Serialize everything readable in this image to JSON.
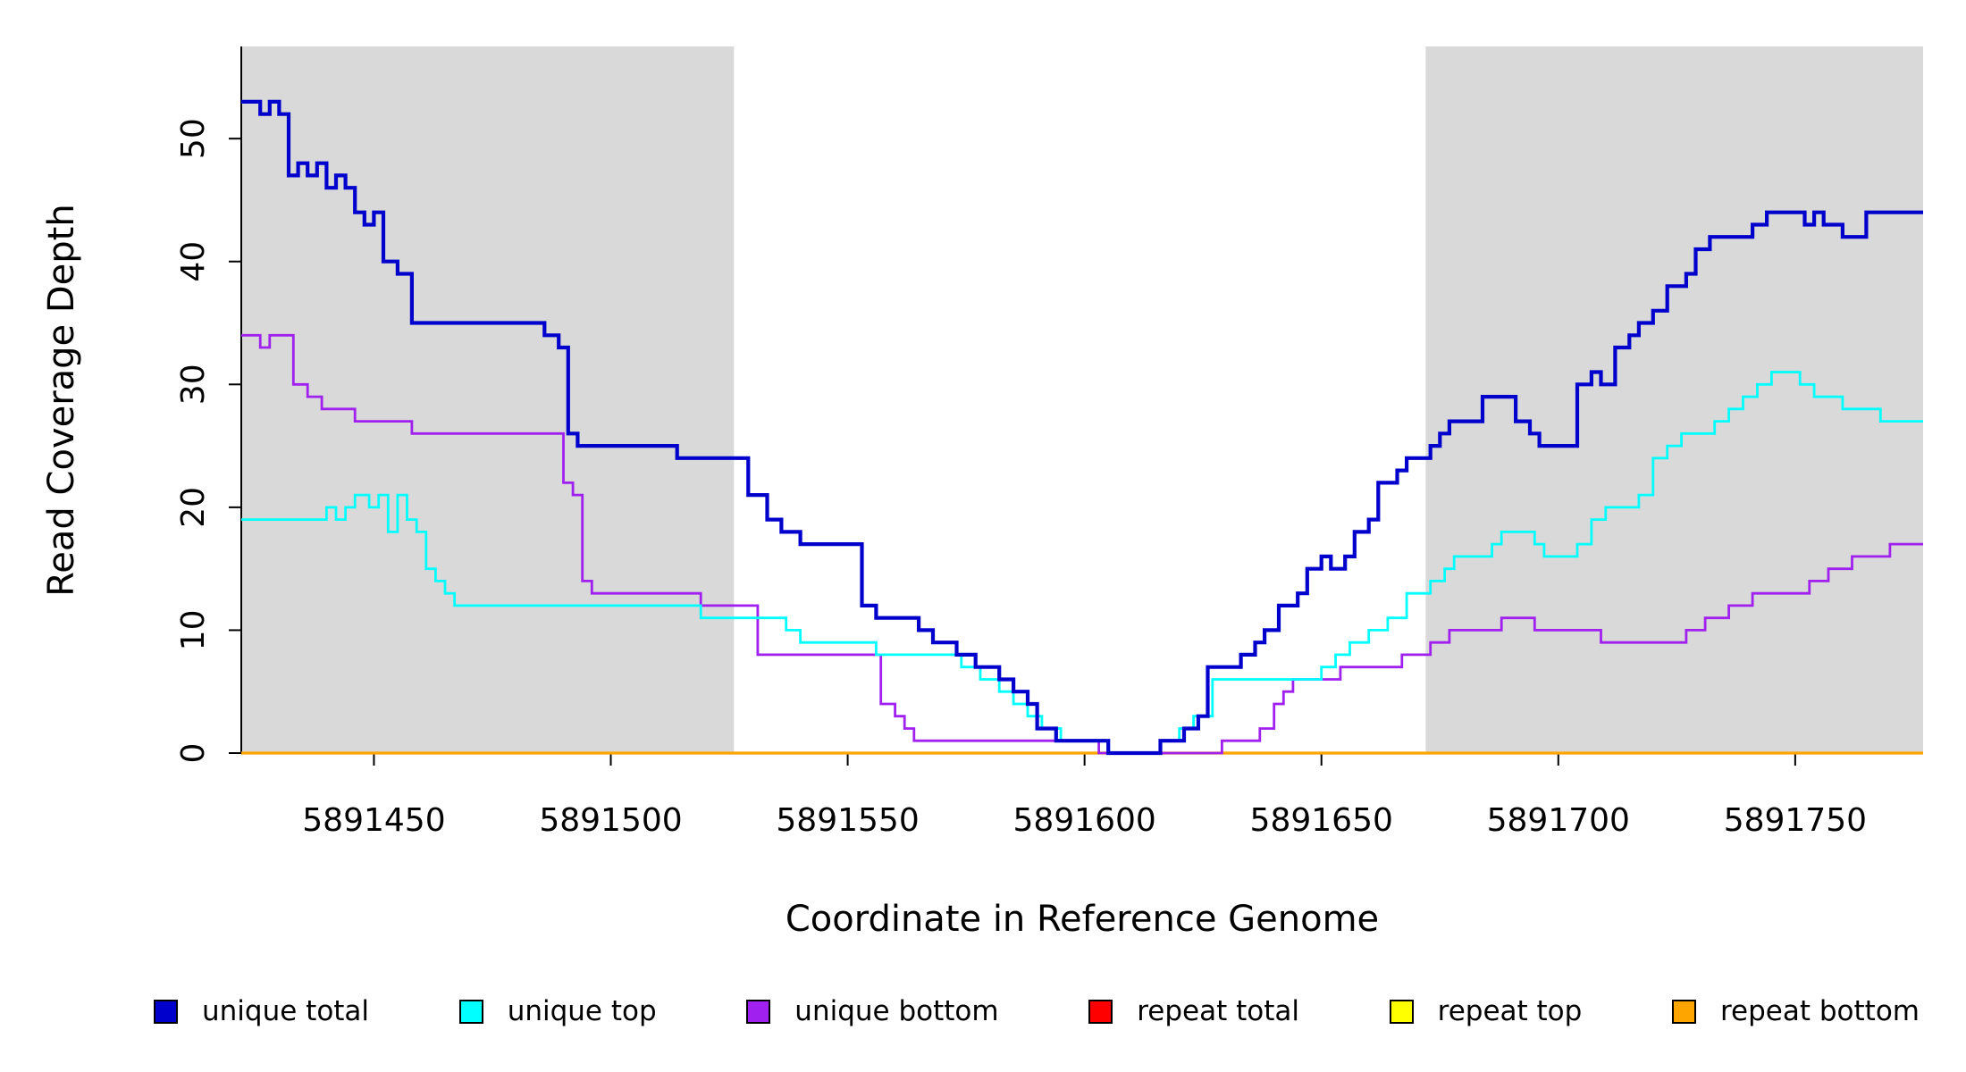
{
  "figure": {
    "background": "#ffffff"
  },
  "chart_data": {
    "type": "line",
    "line_style": "step",
    "title": "",
    "xlabel": "Coordinate in Reference Genome",
    "ylabel": "Read Coverage Depth",
    "xlim": [
      5891422,
      5891777
    ],
    "ylim": [
      0,
      57.5
    ],
    "x_ticks": [
      5891450,
      5891500,
      5891550,
      5891600,
      5891650,
      5891700,
      5891750
    ],
    "y_ticks": [
      0,
      10,
      20,
      30,
      40,
      50
    ],
    "grid": false,
    "legend_position": "bottom",
    "shaded_regions": [
      {
        "x0": 5891422,
        "x1": 5891526,
        "color": "#d9d9d9"
      },
      {
        "x0": 5891672,
        "x1": 5891777,
        "color": "#d9d9d9"
      }
    ],
    "series": [
      {
        "name": "repeat total",
        "color": "#ff0000",
        "width": 2.8,
        "points": [
          [
            5891422,
            0
          ],
          [
            5891777,
            0
          ]
        ]
      },
      {
        "name": "repeat top",
        "color": "#ffff00",
        "width": 2.8,
        "points": [
          [
            5891422,
            0
          ],
          [
            5891777,
            0
          ]
        ]
      },
      {
        "name": "repeat bottom",
        "color": "#ffa500",
        "width": 3.2,
        "points": [
          [
            5891422,
            0
          ],
          [
            5891777,
            0
          ]
        ]
      },
      {
        "name": "unique bottom",
        "color": "#a020f0",
        "width": 2.8,
        "points": [
          [
            5891422,
            34
          ],
          [
            5891426,
            33
          ],
          [
            5891428,
            34
          ],
          [
            5891433,
            30
          ],
          [
            5891436,
            29
          ],
          [
            5891439,
            28
          ],
          [
            5891446,
            27
          ],
          [
            5891458,
            26
          ],
          [
            5891490,
            22
          ],
          [
            5891492,
            21
          ],
          [
            5891494,
            14
          ],
          [
            5891496,
            13
          ],
          [
            5891519,
            12
          ],
          [
            5891531,
            8
          ],
          [
            5891557,
            4
          ],
          [
            5891560,
            3
          ],
          [
            5891562,
            2
          ],
          [
            5891564,
            1
          ],
          [
            5891603,
            0
          ],
          [
            5891629,
            1
          ],
          [
            5891637,
            2
          ],
          [
            5891640,
            4
          ],
          [
            5891642,
            5
          ],
          [
            5891644,
            6
          ],
          [
            5891654,
            7
          ],
          [
            5891667,
            8
          ],
          [
            5891673,
            9
          ],
          [
            5891677,
            10
          ],
          [
            5891688,
            11
          ],
          [
            5891695,
            10
          ],
          [
            5891709,
            9
          ],
          [
            5891727,
            10
          ],
          [
            5891731,
            11
          ],
          [
            5891736,
            12
          ],
          [
            5891741,
            13
          ],
          [
            5891753,
            14
          ],
          [
            5891757,
            15
          ],
          [
            5891762,
            16
          ],
          [
            5891770,
            17
          ],
          [
            5891777,
            17
          ]
        ]
      },
      {
        "name": "unique top",
        "color": "#00ffff",
        "width": 2.8,
        "points": [
          [
            5891422,
            19
          ],
          [
            5891440,
            20
          ],
          [
            5891442,
            19
          ],
          [
            5891444,
            20
          ],
          [
            5891446,
            21
          ],
          [
            5891449,
            20
          ],
          [
            5891451,
            21
          ],
          [
            5891453,
            18
          ],
          [
            5891455,
            21
          ],
          [
            5891457,
            19
          ],
          [
            5891459,
            18
          ],
          [
            5891461,
            15
          ],
          [
            5891463,
            14
          ],
          [
            5891465,
            13
          ],
          [
            5891467,
            12
          ],
          [
            5891519,
            11
          ],
          [
            5891537,
            10
          ],
          [
            5891540,
            9
          ],
          [
            5891556,
            8
          ],
          [
            5891574,
            7
          ],
          [
            5891578,
            6
          ],
          [
            5891582,
            5
          ],
          [
            5891585,
            4
          ],
          [
            5891588,
            3
          ],
          [
            5891591,
            2
          ],
          [
            5891595,
            1
          ],
          [
            5891605,
            0
          ],
          [
            5891616,
            1
          ],
          [
            5891620,
            2
          ],
          [
            5891623,
            3
          ],
          [
            5891627,
            6
          ],
          [
            5891650,
            7
          ],
          [
            5891653,
            8
          ],
          [
            5891656,
            9
          ],
          [
            5891660,
            10
          ],
          [
            5891664,
            11
          ],
          [
            5891668,
            13
          ],
          [
            5891673,
            14
          ],
          [
            5891676,
            15
          ],
          [
            5891678,
            16
          ],
          [
            5891686,
            17
          ],
          [
            5891688,
            18
          ],
          [
            5891695,
            17
          ],
          [
            5891697,
            16
          ],
          [
            5891704,
            17
          ],
          [
            5891707,
            19
          ],
          [
            5891710,
            20
          ],
          [
            5891717,
            21
          ],
          [
            5891720,
            24
          ],
          [
            5891723,
            25
          ],
          [
            5891726,
            26
          ],
          [
            5891733,
            27
          ],
          [
            5891736,
            28
          ],
          [
            5891739,
            29
          ],
          [
            5891742,
            30
          ],
          [
            5891745,
            31
          ],
          [
            5891751,
            30
          ],
          [
            5891754,
            29
          ],
          [
            5891760,
            28
          ],
          [
            5891768,
            27
          ],
          [
            5891777,
            27
          ]
        ]
      },
      {
        "name": "unique total",
        "color": "#0000cd",
        "width": 4.2,
        "points": [
          [
            5891422,
            53
          ],
          [
            5891426,
            52
          ],
          [
            5891428,
            53
          ],
          [
            5891430,
            52
          ],
          [
            5891432,
            47
          ],
          [
            5891434,
            48
          ],
          [
            5891436,
            47
          ],
          [
            5891438,
            48
          ],
          [
            5891440,
            46
          ],
          [
            5891442,
            47
          ],
          [
            5891444,
            46
          ],
          [
            5891446,
            44
          ],
          [
            5891448,
            43
          ],
          [
            5891450,
            44
          ],
          [
            5891452,
            40
          ],
          [
            5891455,
            39
          ],
          [
            5891458,
            35
          ],
          [
            5891486,
            34
          ],
          [
            5891489,
            33
          ],
          [
            5891491,
            26
          ],
          [
            5891493,
            25
          ],
          [
            5891514,
            24
          ],
          [
            5891529,
            21
          ],
          [
            5891533,
            19
          ],
          [
            5891536,
            18
          ],
          [
            5891540,
            17
          ],
          [
            5891553,
            12
          ],
          [
            5891556,
            11
          ],
          [
            5891565,
            10
          ],
          [
            5891568,
            9
          ],
          [
            5891573,
            8
          ],
          [
            5891577,
            7
          ],
          [
            5891582,
            6
          ],
          [
            5891585,
            5
          ],
          [
            5891588,
            4
          ],
          [
            5891590,
            2
          ],
          [
            5891594,
            1
          ],
          [
            5891605,
            0
          ],
          [
            5891616,
            1
          ],
          [
            5891621,
            2
          ],
          [
            5891624,
            3
          ],
          [
            5891626,
            7
          ],
          [
            5891633,
            8
          ],
          [
            5891636,
            9
          ],
          [
            5891638,
            10
          ],
          [
            5891641,
            12
          ],
          [
            5891645,
            13
          ],
          [
            5891647,
            15
          ],
          [
            5891650,
            16
          ],
          [
            5891652,
            15
          ],
          [
            5891655,
            16
          ],
          [
            5891657,
            18
          ],
          [
            5891660,
            19
          ],
          [
            5891662,
            22
          ],
          [
            5891666,
            23
          ],
          [
            5891668,
            24
          ],
          [
            5891673,
            25
          ],
          [
            5891675,
            26
          ],
          [
            5891677,
            27
          ],
          [
            5891684,
            29
          ],
          [
            5891691,
            27
          ],
          [
            5891694,
            26
          ],
          [
            5891696,
            25
          ],
          [
            5891704,
            30
          ],
          [
            5891707,
            31
          ],
          [
            5891709,
            30
          ],
          [
            5891712,
            33
          ],
          [
            5891715,
            34
          ],
          [
            5891717,
            35
          ],
          [
            5891720,
            36
          ],
          [
            5891723,
            38
          ],
          [
            5891727,
            39
          ],
          [
            5891729,
            41
          ],
          [
            5891732,
            42
          ],
          [
            5891741,
            43
          ],
          [
            5891744,
            44
          ],
          [
            5891752,
            43
          ],
          [
            5891754,
            44
          ],
          [
            5891756,
            43
          ],
          [
            5891760,
            42
          ],
          [
            5891765,
            44
          ],
          [
            5891777,
            44
          ]
        ]
      }
    ],
    "legend": [
      {
        "label": "unique total",
        "color": "#0000cd"
      },
      {
        "label": "unique top",
        "color": "#00ffff"
      },
      {
        "label": "unique bottom",
        "color": "#a020f0"
      },
      {
        "label": "repeat total",
        "color": "#ff0000"
      },
      {
        "label": "repeat top",
        "color": "#ffff00"
      },
      {
        "label": "repeat bottom",
        "color": "#ffa500"
      }
    ]
  }
}
